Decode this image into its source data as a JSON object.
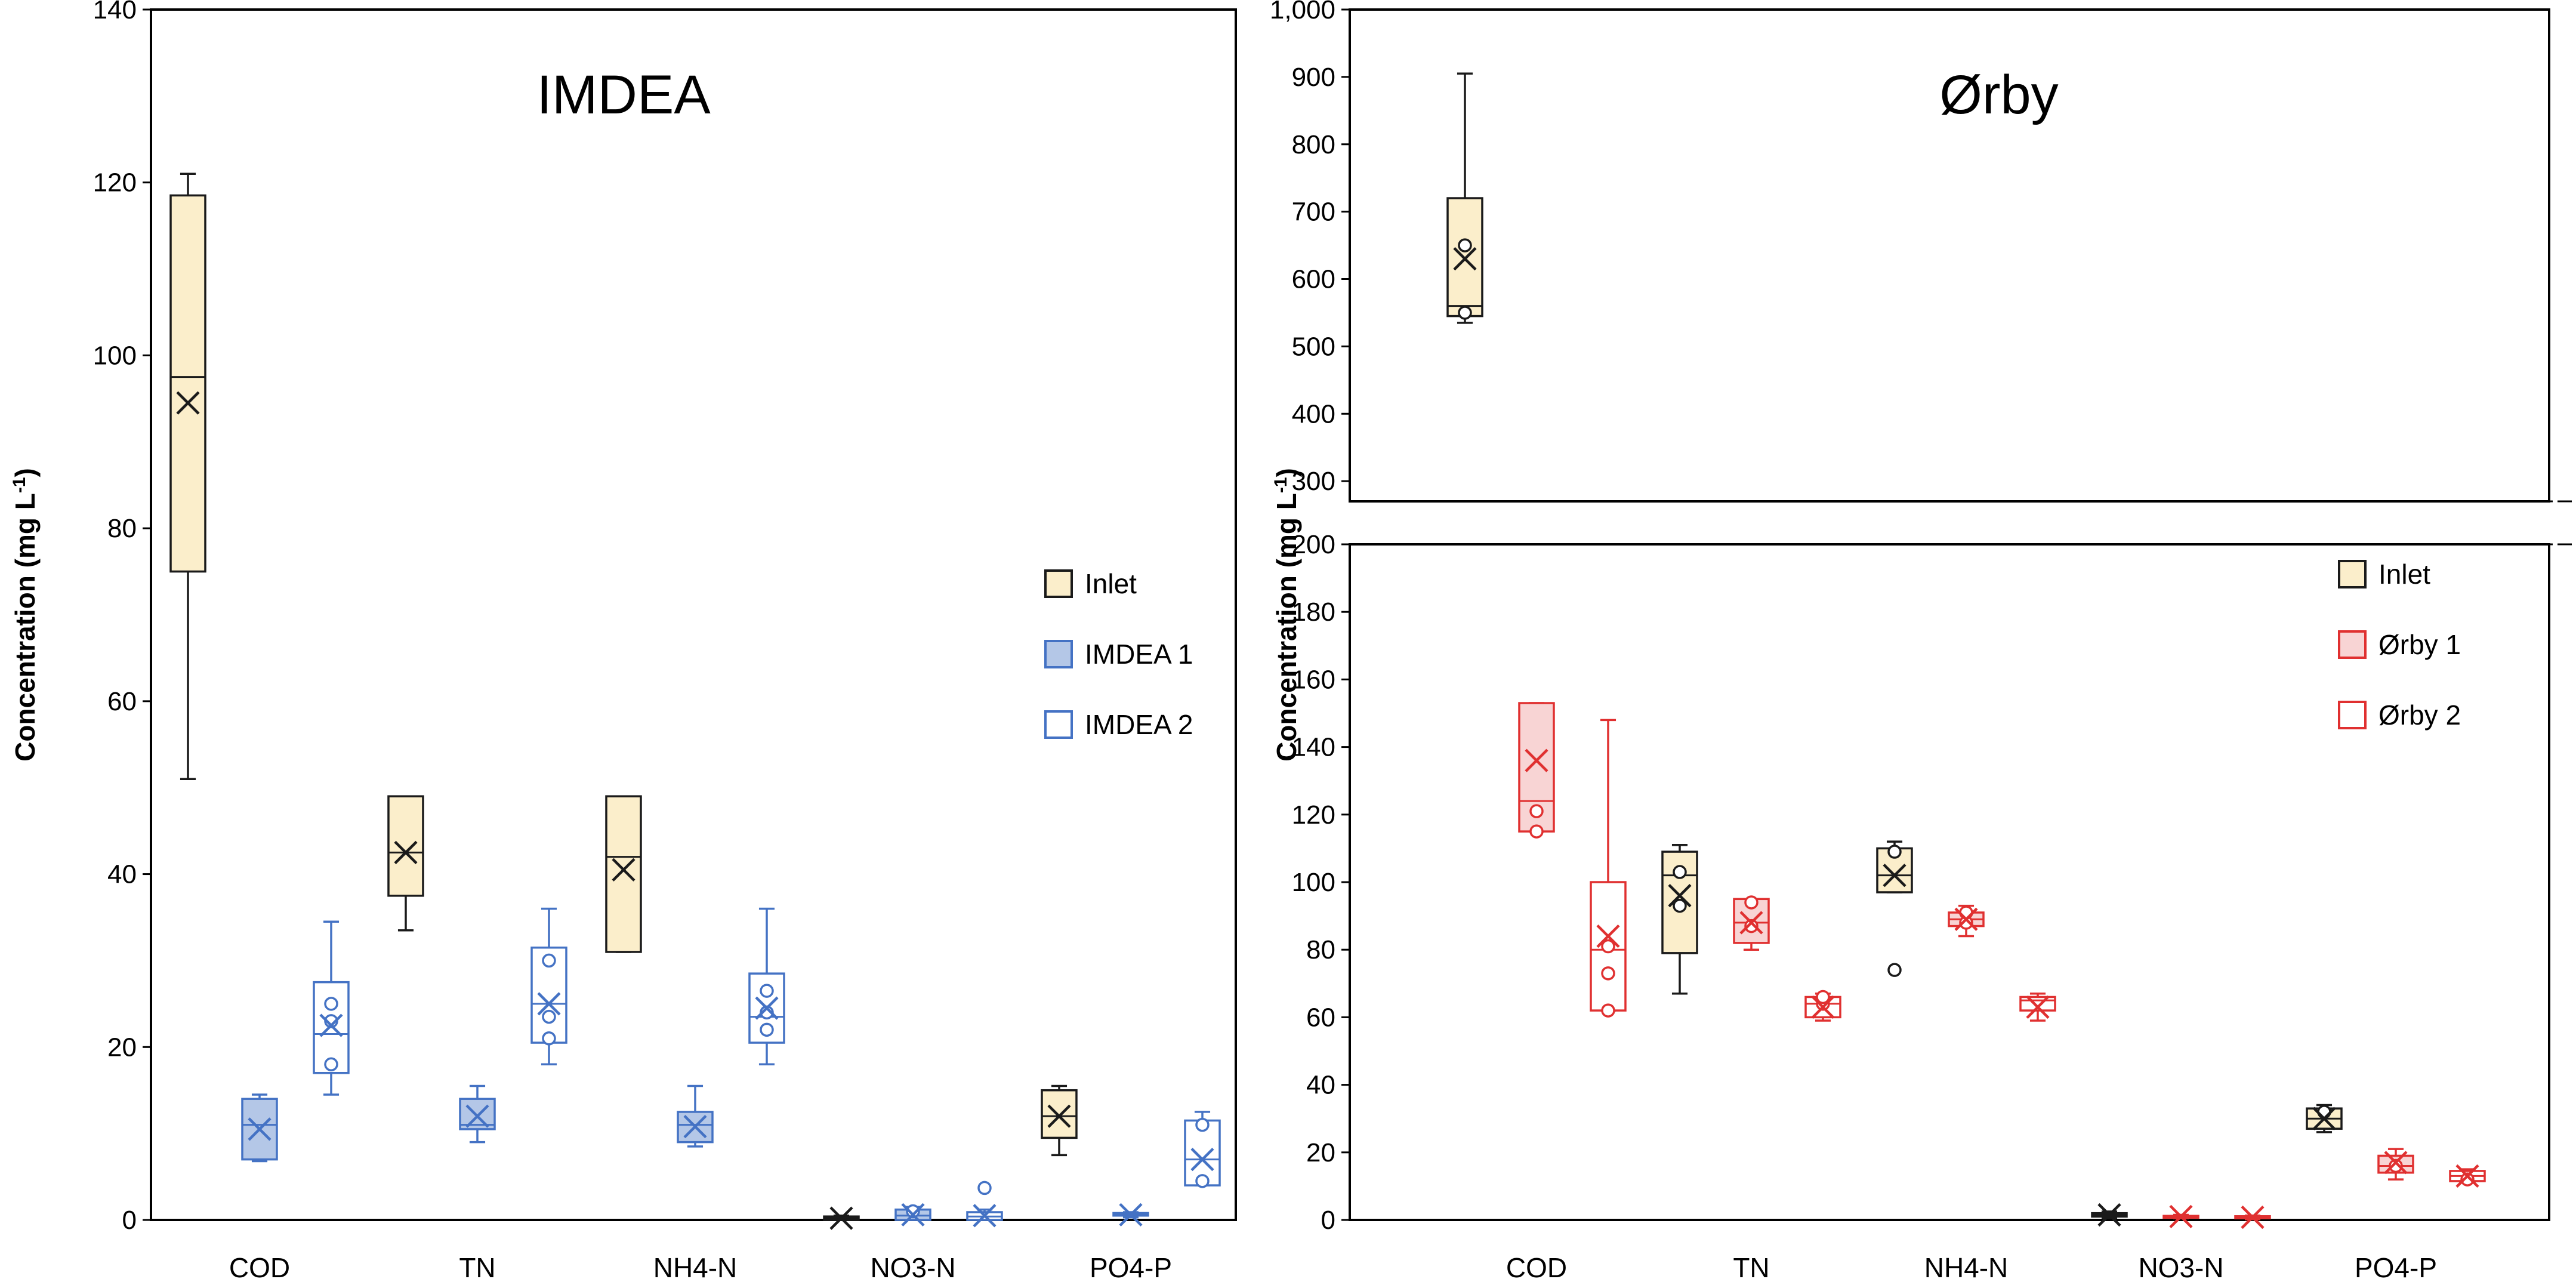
{
  "chart_data": [
    {
      "type": "box",
      "title": "IMDEA",
      "xlabel": "",
      "ylabel": "Concentration (mg L",
      "ylabel_sup": "-1",
      "ylabel_tail": ")",
      "ylim": [
        0,
        140
      ],
      "yticks": [
        0,
        20,
        40,
        60,
        80,
        100,
        120,
        140
      ],
      "categories": [
        "COD",
        "TN",
        "NH4-N",
        "NO3-N",
        "PO4-P"
      ],
      "series": [
        {
          "name": "Inlet",
          "color": "#1a1a1a",
          "fill": "#fbeecb",
          "filled": true,
          "boxes": [
            {
              "min": 51,
              "q1": 75,
              "median": 97.5,
              "q3": 118.5,
              "max": 121,
              "mean": 94.5,
              "points": []
            },
            {
              "min": 33.5,
              "q1": 37.5,
              "median": 42.5,
              "q3": 49,
              "max": 49,
              "mean": 42.5,
              "points": []
            },
            {
              "min": 31,
              "q1": 31,
              "median": 42,
              "q3": 49,
              "max": 49,
              "mean": 40.5,
              "points": []
            },
            {
              "min": 0,
              "q1": 0,
              "median": 0.2,
              "q3": 0.4,
              "max": 0.5,
              "mean": 0.2,
              "points": []
            },
            {
              "min": 7.5,
              "q1": 9.5,
              "median": 12,
              "q3": 15,
              "max": 15.5,
              "mean": 12,
              "points": []
            }
          ]
        },
        {
          "name": "IMDEA 1",
          "color": "#4472c4",
          "fill": "#b4c7e7",
          "filled": true,
          "boxes": [
            {
              "min": 6.8,
              "q1": 7,
              "median": 11,
              "q3": 14,
              "max": 14.5,
              "mean": 10.5,
              "points": []
            },
            {
              "min": 9,
              "q1": 10.5,
              "median": 11,
              "q3": 14,
              "max": 15.5,
              "mean": 12,
              "points": []
            },
            {
              "min": 8.5,
              "q1": 9,
              "median": 11,
              "q3": 12.5,
              "max": 15.5,
              "mean": 10.8,
              "points": []
            },
            {
              "min": 0,
              "q1": 0,
              "median": 0.5,
              "q3": 1.2,
              "max": 1.5,
              "mean": 0.6,
              "points": [
                1
              ]
            },
            {
              "min": 0.3,
              "q1": 0.5,
              "median": 0.6,
              "q3": 0.8,
              "max": 0.9,
              "mean": 0.6,
              "points": []
            }
          ]
        },
        {
          "name": "IMDEA 2",
          "color": "#4472c4",
          "fill": "#ffffff",
          "filled": false,
          "boxes": [
            {
              "min": 14.5,
              "q1": 17,
              "median": 21.5,
              "q3": 27.5,
              "max": 34.5,
              "mean": 22.5,
              "points": [
                18,
                23,
                25
              ]
            },
            {
              "min": 18,
              "q1": 20.5,
              "median": 25,
              "q3": 31.5,
              "max": 36,
              "mean": 25,
              "points": [
                21,
                23.5,
                30
              ]
            },
            {
              "min": 18,
              "q1": 20.5,
              "median": 23.5,
              "q3": 28.5,
              "max": 36,
              "mean": 24.5,
              "points": [
                22,
                24,
                26.5
              ]
            },
            {
              "min": 0,
              "q1": 0,
              "median": 0.4,
              "q3": 0.9,
              "max": 1.2,
              "mean": 0.5,
              "points": [
                3.7
              ]
            },
            {
              "min": 4,
              "q1": 4,
              "median": 7,
              "q3": 11.5,
              "max": 12.5,
              "mean": 7,
              "points": [
                4.5,
                11
              ]
            }
          ]
        }
      ]
    },
    {
      "type": "box",
      "title": "Ørby",
      "xlabel": "",
      "ylabel": "Concentration (mg L",
      "ylabel_sup": "-1",
      "ylabel_tail": ")",
      "ylim_lower": [
        0,
        200
      ],
      "ylim_upper": [
        270,
        1000
      ],
      "yticks": [
        0,
        20,
        40,
        60,
        80,
        100,
        120,
        140,
        160,
        180,
        200,
        300,
        400,
        500,
        600,
        700,
        800,
        900,
        1000
      ],
      "ytick_labels": [
        "0",
        "20",
        "40",
        "60",
        "80",
        "100",
        "120",
        "140",
        "160",
        "180",
        "200",
        "300",
        "400",
        "500",
        "600",
        "700",
        "800",
        "900",
        "1,000"
      ],
      "categories": [
        "COD",
        "TN",
        "NH4-N",
        "NO3-N",
        "PO4-P"
      ],
      "series": [
        {
          "name": "Inlet",
          "color": "#1a1a1a",
          "fill": "#fbeecb",
          "filled": true,
          "boxes": [
            {
              "min": 535,
              "q1": 545,
              "median": 560,
              "q3": 720,
              "max": 905,
              "mean": 630,
              "points": [
                550,
                650
              ]
            },
            {
              "min": 67,
              "q1": 79,
              "median": 102,
              "q3": 109,
              "max": 111,
              "mean": 96,
              "points": [
                93,
                103
              ]
            },
            {
              "min": 97,
              "q1": 97,
              "median": 102,
              "q3": 110,
              "max": 112,
              "mean": 102,
              "points": [
                74,
                109
              ]
            },
            {
              "min": 0.5,
              "q1": 1,
              "median": 1.5,
              "q3": 2,
              "max": 2.5,
              "mean": 1.5,
              "points": []
            },
            {
              "min": 26,
              "q1": 27,
              "median": 30,
              "q3": 33,
              "max": 34,
              "mean": 30,
              "points": [
                32
              ]
            }
          ]
        },
        {
          "name": "Ørby 1",
          "color": "#e03030",
          "fill": "#f8d4d4",
          "filled": true,
          "boxes": [
            {
              "min": 115,
              "q1": 115,
              "median": 124,
              "q3": 153,
              "max": 153,
              "mean": 136,
              "points": [
                115,
                121
              ]
            },
            {
              "min": 80,
              "q1": 82,
              "median": 88,
              "q3": 95,
              "max": 95,
              "mean": 88,
              "points": [
                87,
                94
              ]
            },
            {
              "min": 84,
              "q1": 87,
              "median": 89,
              "q3": 91,
              "max": 93,
              "mean": 89,
              "points": [
                88,
                91
              ]
            },
            {
              "min": 0.5,
              "q1": 0.8,
              "median": 1,
              "q3": 1.2,
              "max": 1.5,
              "mean": 1,
              "points": []
            },
            {
              "min": 12,
              "q1": 14,
              "median": 16,
              "q3": 19,
              "max": 21,
              "mean": 17,
              "points": [
                16
              ]
            }
          ]
        },
        {
          "name": "Ørby 2",
          "color": "#e03030",
          "fill": "#ffffff",
          "filled": false,
          "boxes": [
            {
              "min": 62,
              "q1": 62,
              "median": 80,
              "q3": 100,
              "max": 148,
              "mean": 84,
              "points": [
                62,
                73,
                81
              ]
            },
            {
              "min": 59,
              "q1": 60,
              "median": 64,
              "q3": 66,
              "max": 67,
              "mean": 63,
              "points": [
                64,
                66
              ]
            },
            {
              "min": 59,
              "q1": 62,
              "median": 65,
              "q3": 66,
              "max": 67,
              "mean": 63,
              "points": []
            },
            {
              "min": 0.2,
              "q1": 0.5,
              "median": 0.8,
              "q3": 1.1,
              "max": 1.3,
              "mean": 0.8,
              "points": []
            },
            {
              "min": 11,
              "q1": 11.5,
              "median": 13,
              "q3": 14.5,
              "max": 15,
              "mean": 13,
              "points": [
                12
              ]
            }
          ]
        }
      ]
    }
  ]
}
